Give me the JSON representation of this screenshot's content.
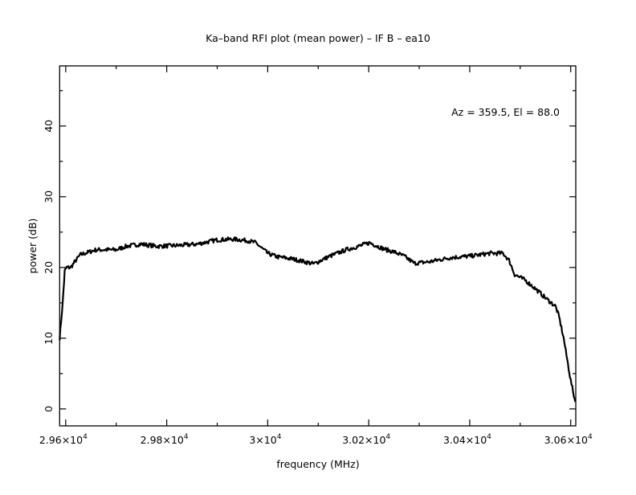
{
  "chart_data": {
    "type": "line",
    "title": "Ka–band RFI plot (mean power) – IF B – ea10",
    "xlabel": "frequency (MHz)",
    "ylabel": "power (dB)",
    "annotation": "Az = 359.5, El = 88.0",
    "xlim": [
      29588,
      30610
    ],
    "ylim": [
      -2.4,
      48.5
    ],
    "xticks": [
      {
        "value": 29600,
        "label": "2.96×10",
        "exp": "4"
      },
      {
        "value": 29800,
        "label": "2.98×10",
        "exp": "4"
      },
      {
        "value": 30000,
        "label": "3×10",
        "exp": "4"
      },
      {
        "value": 30200,
        "label": "3.02×10",
        "exp": "4"
      },
      {
        "value": 30400,
        "label": "3.04×10",
        "exp": "4"
      },
      {
        "value": 30600,
        "label": "3.06×10",
        "exp": "4"
      }
    ],
    "yticks": [
      {
        "value": 0,
        "label": "0"
      },
      {
        "value": 10,
        "label": "10"
      },
      {
        "value": 20,
        "label": "20"
      },
      {
        "value": 30,
        "label": "30"
      },
      {
        "value": 40,
        "label": "40"
      }
    ],
    "grid": false,
    "series": [
      {
        "name": "mean power",
        "color": "#000000",
        "x": [
          29588,
          29594,
          29598,
          29602,
          29610,
          29620,
          29629,
          29660,
          29700,
          29720,
          29749,
          29780,
          29820,
          29860,
          29900,
          29932,
          29960,
          29976,
          30000,
          30019,
          30050,
          30091,
          30120,
          30155,
          30180,
          30202,
          30230,
          30250,
          30270,
          30290,
          30320,
          30362,
          30400,
          30440,
          30466,
          30478,
          30489,
          30510,
          30530,
          30553,
          30570,
          30577,
          30586,
          30593,
          30600,
          30609
        ],
        "y": [
          10,
          15,
          19.5,
          20,
          20,
          21,
          21.8,
          22.5,
          22.5,
          23.0,
          23.3,
          23.0,
          23.1,
          23.3,
          23.9,
          24.0,
          23.8,
          23.5,
          22.0,
          21.5,
          21.2,
          20.5,
          21.5,
          22.5,
          23.0,
          23.5,
          22.6,
          22.2,
          21.6,
          20.6,
          20.8,
          21.4,
          21.6,
          22.0,
          22.0,
          21.0,
          19.0,
          18.2,
          17.0,
          15.5,
          14.5,
          13.0,
          10.0,
          7.0,
          4.0,
          1.0
        ]
      }
    ]
  }
}
